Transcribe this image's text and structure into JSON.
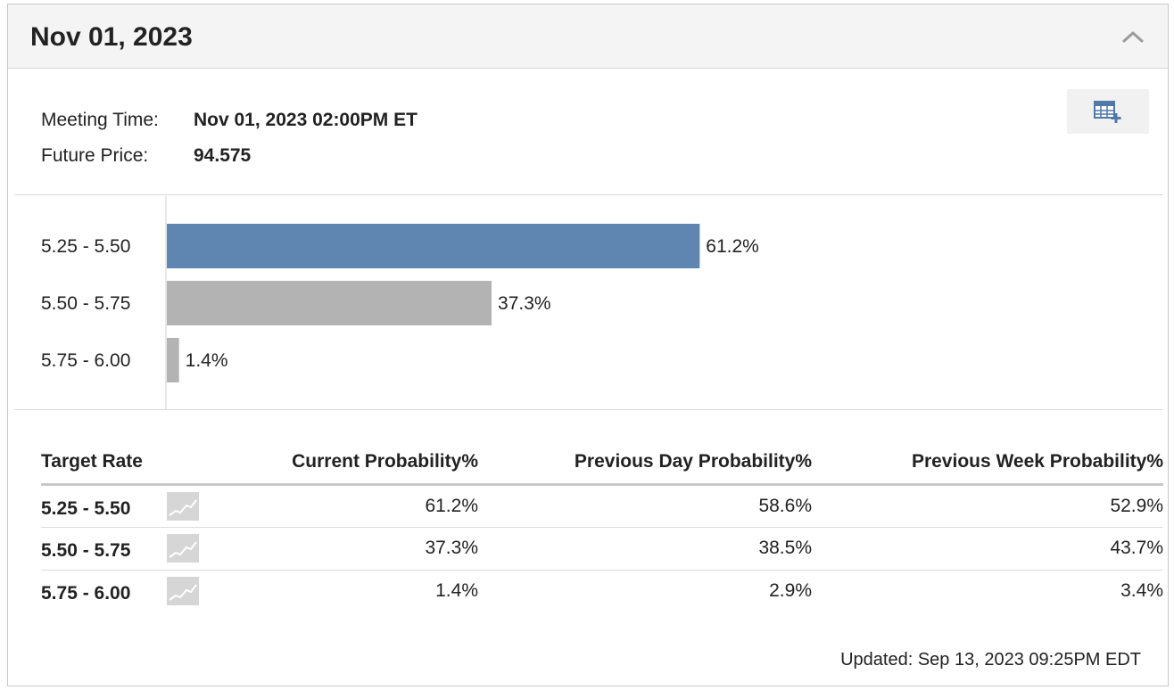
{
  "panel": {
    "title": "Nov 01, 2023",
    "collapse_icon": "chevron-up-icon",
    "export_icon": "table-add-icon"
  },
  "meta": {
    "meeting_time_label": "Meeting Time:",
    "meeting_time_value": "Nov 01, 2023 02:00PM ET",
    "future_price_label": "Future Price:",
    "future_price_value": "94.575"
  },
  "chart_data": {
    "type": "bar",
    "orientation": "horizontal",
    "categories": [
      "5.25 - 5.50",
      "5.50 - 5.75",
      "5.75 - 6.00"
    ],
    "values": [
      61.2,
      37.3,
      1.4
    ],
    "value_labels": [
      "61.2%",
      "37.3%",
      "1.4%"
    ],
    "colors": [
      "#5f86b0",
      "#b3b3b3",
      "#b3b3b3"
    ],
    "xlim": [
      0,
      100
    ],
    "title": "",
    "xlabel": "",
    "ylabel": "",
    "grid": false
  },
  "table": {
    "headers": [
      "Target Rate",
      "Current Probability%",
      "Previous Day Probability%",
      "Previous Week Probability%"
    ],
    "rows": [
      {
        "rate": "5.25 - 5.50",
        "current": "61.2%",
        "prev_day": "58.6%",
        "prev_week": "52.9%"
      },
      {
        "rate": "5.50 - 5.75",
        "current": "37.3%",
        "prev_day": "38.5%",
        "prev_week": "43.7%"
      },
      {
        "rate": "5.75 - 6.00",
        "current": "1.4%",
        "prev_day": "2.9%",
        "prev_week": "3.4%"
      }
    ],
    "spark_icon": "sparkline-chart-icon"
  },
  "footer": {
    "updated": "Updated: Sep 13, 2023 09:25PM EDT"
  }
}
